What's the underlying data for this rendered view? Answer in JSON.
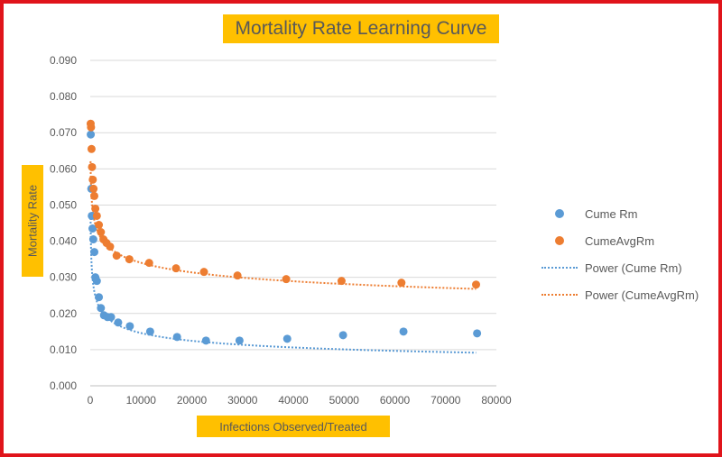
{
  "chart_data": {
    "type": "scatter",
    "title": "Mortality Rate Learning Curve",
    "xlabel": "Infections Observed/Treated",
    "ylabel": "Mortality Rate",
    "xlim": [
      0,
      80000
    ],
    "ylim": [
      0,
      0.09
    ],
    "x_ticks": [
      "0",
      "10000",
      "20000",
      "30000",
      "40000",
      "50000",
      "60000",
      "70000",
      "80000"
    ],
    "y_ticks": [
      "0.000",
      "0.010",
      "0.020",
      "0.030",
      "0.040",
      "0.050",
      "0.060",
      "0.070",
      "0.080",
      "0.090"
    ],
    "grid": "horizontal",
    "legend_position": "right",
    "series": [
      {
        "name": "Cume Rm",
        "kind": "markers",
        "color": "#5b9bd5",
        "x": [
          100,
          200,
          300,
          450,
          600,
          800,
          1000,
          1300,
          1700,
          2100,
          2700,
          3400,
          4100,
          5500,
          7800,
          11800,
          17100,
          22800,
          29400,
          38800,
          49800,
          61700,
          76200
        ],
        "y": [
          0.0695,
          0.0545,
          0.047,
          0.0435,
          0.0405,
          0.037,
          0.03,
          0.029,
          0.0245,
          0.0215,
          0.0195,
          0.019,
          0.019,
          0.0175,
          0.0165,
          0.015,
          0.0135,
          0.0125,
          0.0125,
          0.013,
          0.014,
          0.015,
          0.0145
        ]
      },
      {
        "name": "CumeAvgRm",
        "kind": "markers",
        "color": "#ed7d31",
        "x": [
          80,
          150,
          250,
          350,
          500,
          650,
          800,
          1000,
          1300,
          1700,
          2100,
          2600,
          3200,
          3900,
          5200,
          7700,
          11600,
          16900,
          22400,
          29000,
          38600,
          49500,
          61300,
          76000
        ],
        "y": [
          0.0725,
          0.0715,
          0.0655,
          0.0605,
          0.057,
          0.0545,
          0.0525,
          0.049,
          0.047,
          0.0445,
          0.0425,
          0.0405,
          0.0395,
          0.0385,
          0.036,
          0.035,
          0.034,
          0.0325,
          0.0315,
          0.0305,
          0.0295,
          0.029,
          0.0285,
          0.028
        ]
      },
      {
        "name": "Power (Cume Rm)",
        "kind": "trendline",
        "color": "#5b9bd5",
        "curve": {
          "a": 0.1216,
          "b": -0.2302
        },
        "x_range": [
          60,
          76000
        ]
      },
      {
        "name": "Power (CumeAvgRm)",
        "kind": "trendline",
        "color": "#ed7d31",
        "curve": {
          "a": 0.1005,
          "b": -0.1176
        },
        "x_range": [
          60,
          76000
        ]
      }
    ]
  }
}
